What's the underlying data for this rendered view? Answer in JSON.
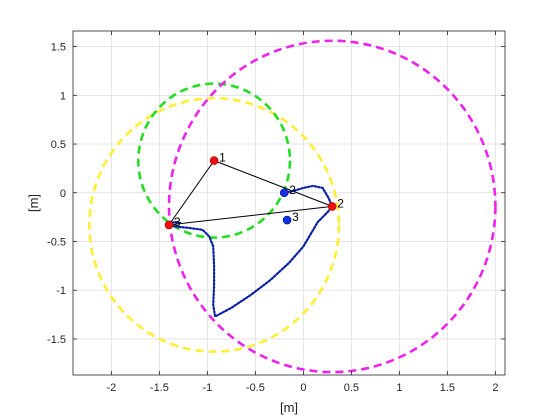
{
  "chart_data": {
    "type": "scatter",
    "xlabel": "[m]",
    "ylabel": "[m]",
    "xlim": [
      -2.4,
      2.1
    ],
    "ylim": [
      -1.87,
      1.66
    ],
    "x_ticks": [
      -2,
      -1.5,
      -1,
      -0.5,
      0,
      0.5,
      1,
      1.5,
      2
    ],
    "x_tick_labels": [
      "-2",
      "-1.5",
      "-1",
      "-0.5",
      "0",
      "0.5",
      "1",
      "1.5",
      "2"
    ],
    "y_ticks": [
      -1.5,
      -1,
      -0.5,
      0,
      0.5,
      1,
      1.5
    ],
    "y_tick_labels": [
      "-1.5",
      "-1",
      "-0.5",
      "0",
      "0.5",
      "1",
      "1.5"
    ],
    "grid": true,
    "circles": [
      {
        "color": "#ffee33",
        "cx": -0.93,
        "cy": -0.33,
        "r": 1.3
      },
      {
        "color": "#22dd22",
        "cx": -0.93,
        "cy": 0.33,
        "r": 0.79
      },
      {
        "color": "#ee22ee",
        "cx": 0.3,
        "cy": -0.14,
        "r": 1.7
      }
    ],
    "red_points": [
      {
        "label": "1",
        "x": -0.93,
        "y": 0.33
      },
      {
        "label": "2",
        "x": 0.3,
        "y": -0.14
      },
      {
        "label": "3",
        "x": -1.4,
        "y": -0.33
      }
    ],
    "triangle_color": "#000000",
    "blue_points": [
      {
        "label": "2",
        "x": -0.2,
        "y": 0.0
      },
      {
        "label": "3",
        "x": -0.17,
        "y": -0.28
      }
    ],
    "path_color": "#0a1fa8",
    "path": [
      [
        -0.2,
        0.0
      ],
      [
        -0.1,
        0.02
      ],
      [
        0.0,
        0.05
      ],
      [
        0.1,
        0.07
      ],
      [
        0.2,
        0.05
      ],
      [
        0.26,
        -0.05
      ],
      [
        0.3,
        -0.14
      ],
      [
        0.25,
        -0.2
      ],
      [
        0.15,
        -0.3
      ],
      [
        0.0,
        -0.55
      ],
      [
        -0.15,
        -0.72
      ],
      [
        -0.35,
        -0.9
      ],
      [
        -0.55,
        -1.05
      ],
      [
        -0.75,
        -1.18
      ],
      [
        -0.92,
        -1.27
      ],
      [
        -0.94,
        -1.15
      ],
      [
        -0.93,
        -0.95
      ],
      [
        -0.93,
        -0.75
      ],
      [
        -0.94,
        -0.55
      ],
      [
        -0.98,
        -0.45
      ],
      [
        -1.05,
        -0.38
      ],
      [
        -1.2,
        -0.36
      ],
      [
        -1.3,
        -0.35
      ],
      [
        -1.38,
        -0.34
      ],
      [
        -1.4,
        -0.33
      ]
    ],
    "path_tail": [
      [
        -1.4,
        -0.33
      ],
      [
        -1.35,
        -0.3
      ],
      [
        -1.28,
        -0.31
      ]
    ]
  }
}
